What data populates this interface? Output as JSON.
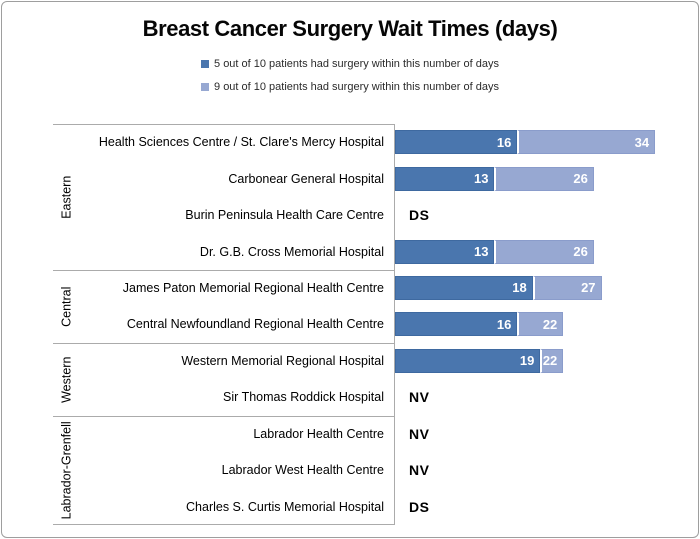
{
  "title": "Breast Cancer Surgery Wait Times (days)",
  "legend": {
    "items": [
      {
        "label": "5 out of 10 patients had surgery within this number of days",
        "color": "#4a76ae"
      },
      {
        "label": "9 out of 10 patients had surgery within this number of days",
        "color": "#97a8d2"
      }
    ]
  },
  "colors": {
    "series_p50": "#4a76ae",
    "series_p90": "#97a8d2",
    "axis_line": "#ababab",
    "frame_border": "#9e9e9e"
  },
  "chart_data": {
    "type": "bar",
    "orientation": "horizontal",
    "stacked": true,
    "title": "Breast Cancer Surgery Wait Times (days)",
    "xlim": [
      0,
      40
    ],
    "grid": false,
    "legend_position": "top",
    "series_names": [
      "5 out of 10 patients had surgery within this number of days",
      "9 out of 10 patients had surgery within this number of days"
    ],
    "groups": [
      {
        "region": "Eastern",
        "rows": [
          {
            "label": "Health Sciences Centre / St. Clare's Mercy Hospital",
            "p50": 16,
            "p90": 34
          },
          {
            "label": "Carbonear General Hospital",
            "p50": 13,
            "p90": 26
          },
          {
            "label": "Burin Peninsula Health Care Centre",
            "note": "DS"
          },
          {
            "label": "Dr. G.B. Cross Memorial Hospital",
            "p50": 13,
            "p90": 26
          }
        ]
      },
      {
        "region": "Central",
        "rows": [
          {
            "label": "James Paton Memorial Regional Health Centre",
            "p50": 18,
            "p90": 27
          },
          {
            "label": "Central Newfoundland Regional Health Centre",
            "p50": 16,
            "p90": 22
          }
        ]
      },
      {
        "region": "Western",
        "rows": [
          {
            "label": "Western Memorial Regional Hospital",
            "p50": 19,
            "p90": 22
          },
          {
            "label": "Sir Thomas Roddick Hospital",
            "note": "NV"
          }
        ]
      },
      {
        "region": "Labrador-Grenfell",
        "rows": [
          {
            "label": "Labrador Health Centre",
            "note": "NV"
          },
          {
            "label": "Labrador West Health Centre",
            "note": "NV"
          },
          {
            "label": "Charles S. Curtis Memorial Hospital",
            "note": "DS"
          }
        ]
      }
    ]
  }
}
